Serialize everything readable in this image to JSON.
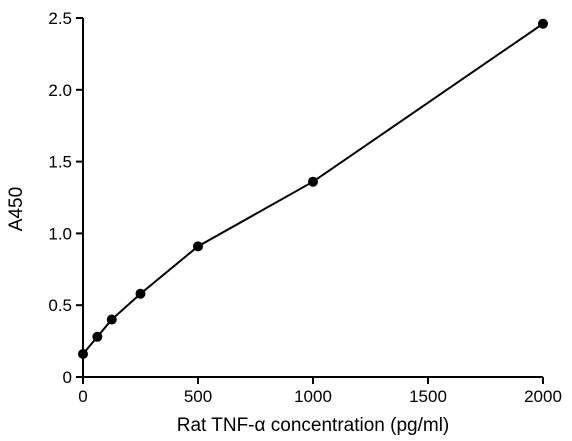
{
  "chart_data": {
    "type": "line",
    "title": "",
    "xlabel": "Rat TNF-α concentration (pg/ml)",
    "ylabel": "A450",
    "xlim": [
      0,
      2000
    ],
    "ylim": [
      0,
      2.5
    ],
    "x_ticks": [
      "0",
      "500",
      "1000",
      "1500",
      "2000"
    ],
    "y_ticks": [
      "0",
      "0.5",
      "1.0",
      "1.5",
      "2.0",
      "2.5"
    ],
    "grid": false,
    "series": [
      {
        "x": [
          0,
          62.5,
          125,
          250,
          500,
          1000,
          2000
        ],
        "y": [
          0.16,
          0.28,
          0.4,
          0.58,
          0.91,
          1.36,
          2.46
        ]
      }
    ]
  }
}
